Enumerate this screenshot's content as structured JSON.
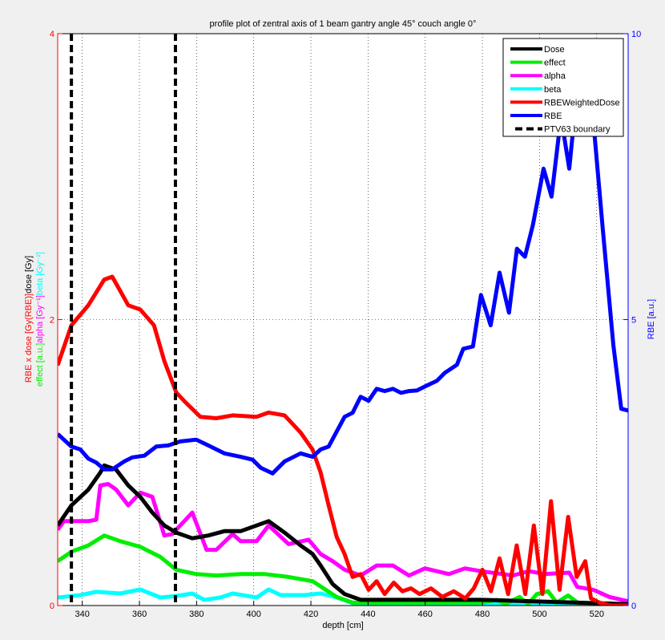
{
  "chart_data": {
    "type": "line",
    "title": "profile plot of zentral axis of 1 beam gantry angle 45° couch angle 0°",
    "xlabel": "depth [cm]",
    "ylabel_left_line1": [
      {
        "text": "RBE x dose [Gy(RBE)]",
        "color": "#ff0000"
      },
      {
        "text": "dose [Gy]",
        "color": "#000000"
      }
    ],
    "ylabel_left_line2": [
      {
        "text": "effect [a.u.]",
        "color": "#00ee00"
      },
      {
        "text": "alpha [Gy⁻¹]",
        "color": "#ff00ff"
      },
      {
        "text": "beta [Gy⁻²]",
        "color": "#00ffff"
      }
    ],
    "ylabel_right": "RBE [a.u.]",
    "xlim": [
      331.4,
      531
    ],
    "ylim_left": [
      0,
      4
    ],
    "ylim_right": [
      0,
      10
    ],
    "xticks": [
      340,
      360,
      380,
      400,
      420,
      440,
      460,
      480,
      500,
      520
    ],
    "yticks_left": [
      0,
      2,
      4
    ],
    "yticks_right": [
      0,
      5,
      10
    ],
    "grid": true,
    "legend_position": "top-right",
    "series": [
      {
        "name": "Dose",
        "color": "#000000",
        "axis": "left",
        "points": [
          [
            331.4,
            0.56
          ],
          [
            336.2,
            0.7
          ],
          [
            342.1,
            0.81
          ],
          [
            346.3,
            0.93
          ],
          [
            347.7,
            0.98
          ],
          [
            351.9,
            0.95
          ],
          [
            356.1,
            0.84
          ],
          [
            360.3,
            0.76
          ],
          [
            364.5,
            0.65
          ],
          [
            368.7,
            0.56
          ],
          [
            372.9,
            0.51
          ],
          [
            378.5,
            0.47
          ],
          [
            384.1,
            0.49
          ],
          [
            389.7,
            0.52
          ],
          [
            395.4,
            0.52
          ],
          [
            401,
            0.56
          ],
          [
            405.2,
            0.59
          ],
          [
            410.8,
            0.51
          ],
          [
            416.4,
            0.42
          ],
          [
            420.6,
            0.36
          ],
          [
            423.4,
            0.28
          ],
          [
            427.6,
            0.15
          ],
          [
            431.8,
            0.08
          ],
          [
            437.4,
            0.04
          ],
          [
            443,
            0.04
          ],
          [
            479.5,
            0.04
          ],
          [
            531,
            0.01
          ]
        ]
      },
      {
        "name": "effect",
        "color": "#00ee00",
        "axis": "left",
        "points": [
          [
            331.4,
            0.31
          ],
          [
            336.5,
            0.38
          ],
          [
            342.1,
            0.42
          ],
          [
            347.7,
            0.49
          ],
          [
            353.3,
            0.45
          ],
          [
            360.3,
            0.41
          ],
          [
            367.3,
            0.34
          ],
          [
            372.9,
            0.25
          ],
          [
            379.9,
            0.22
          ],
          [
            386.9,
            0.21
          ],
          [
            395.4,
            0.22
          ],
          [
            403.8,
            0.22
          ],
          [
            412.2,
            0.2
          ],
          [
            420.6,
            0.17
          ],
          [
            429,
            0.06
          ],
          [
            434.6,
            0.02
          ],
          [
            479.5,
            0.02
          ],
          [
            485,
            0.04
          ],
          [
            488,
            0.01
          ],
          [
            493,
            0.06
          ],
          [
            496,
            0.01
          ],
          [
            499,
            0.08
          ],
          [
            503,
            0.1
          ],
          [
            506,
            0.02
          ],
          [
            510,
            0.07
          ],
          [
            514,
            0.01
          ],
          [
            520,
            0.01
          ],
          [
            531,
            0
          ]
        ]
      },
      {
        "name": "alpha",
        "color": "#ff00ff",
        "axis": "left",
        "points": [
          [
            331.4,
            0.53
          ],
          [
            333.6,
            0.59
          ],
          [
            342.1,
            0.59
          ],
          [
            344.9,
            0.6
          ],
          [
            346.3,
            0.84
          ],
          [
            349.1,
            0.85
          ],
          [
            351.9,
            0.81
          ],
          [
            356.1,
            0.7
          ],
          [
            360.3,
            0.79
          ],
          [
            364.5,
            0.76
          ],
          [
            368.7,
            0.49
          ],
          [
            371.5,
            0.5
          ],
          [
            374.3,
            0.56
          ],
          [
            378.5,
            0.65
          ],
          [
            383.5,
            0.39
          ],
          [
            386.9,
            0.39
          ],
          [
            392.6,
            0.5
          ],
          [
            395.4,
            0.45
          ],
          [
            401,
            0.45
          ],
          [
            405.2,
            0.56
          ],
          [
            412.2,
            0.43
          ],
          [
            419.2,
            0.46
          ],
          [
            423.4,
            0.36
          ],
          [
            427.6,
            0.31
          ],
          [
            431.8,
            0.25
          ],
          [
            437.4,
            0.21
          ],
          [
            443,
            0.28
          ],
          [
            448.7,
            0.28
          ],
          [
            454.3,
            0.21
          ],
          [
            459.9,
            0.26
          ],
          [
            468.3,
            0.22
          ],
          [
            473.9,
            0.26
          ],
          [
            479.5,
            0.24
          ],
          [
            490.7,
            0.21
          ],
          [
            496.3,
            0.24
          ],
          [
            501.9,
            0.22
          ],
          [
            510.4,
            0.23
          ],
          [
            513.2,
            0.13
          ],
          [
            518.8,
            0.11
          ],
          [
            524.4,
            0.06
          ],
          [
            531,
            0.03
          ]
        ]
      },
      {
        "name": "beta",
        "color": "#00ffff",
        "axis": "left",
        "points": [
          [
            331.4,
            0.056
          ],
          [
            339.3,
            0.073
          ],
          [
            344.9,
            0.096
          ],
          [
            353.3,
            0.084
          ],
          [
            360.3,
            0.112
          ],
          [
            367.3,
            0.056
          ],
          [
            372.9,
            0.067
          ],
          [
            378.5,
            0.084
          ],
          [
            382.7,
            0.039
          ],
          [
            388.3,
            0.056
          ],
          [
            392.6,
            0.084
          ],
          [
            401,
            0.056
          ],
          [
            405.2,
            0.112
          ],
          [
            409.4,
            0.073
          ],
          [
            417.8,
            0.073
          ],
          [
            423.4,
            0.084
          ],
          [
            429,
            0.056
          ],
          [
            434.6,
            0.017
          ],
          [
            531,
            0.01
          ]
        ]
      },
      {
        "name": "RBEWeightedDose",
        "color": "#ff0000",
        "axis": "left",
        "points": [
          [
            331.4,
            1.68
          ],
          [
            336.2,
            1.96
          ],
          [
            342.1,
            2.1
          ],
          [
            347.7,
            2.28
          ],
          [
            350.5,
            2.3
          ],
          [
            356.1,
            2.1
          ],
          [
            360.3,
            2.07
          ],
          [
            365.1,
            1.96
          ],
          [
            368.7,
            1.71
          ],
          [
            372.9,
            1.49
          ],
          [
            375.7,
            1.43
          ],
          [
            381.3,
            1.32
          ],
          [
            386.9,
            1.31
          ],
          [
            392.6,
            1.33
          ],
          [
            401,
            1.32
          ],
          [
            405.2,
            1.35
          ],
          [
            410.8,
            1.33
          ],
          [
            416.4,
            1.21
          ],
          [
            420.6,
            1.09
          ],
          [
            423.4,
            0.93
          ],
          [
            426.2,
            0.7
          ],
          [
            429,
            0.48
          ],
          [
            431.8,
            0.36
          ],
          [
            434.6,
            0.2
          ],
          [
            437.4,
            0.22
          ],
          [
            440.2,
            0.11
          ],
          [
            443,
            0.17
          ],
          [
            445.8,
            0.08
          ],
          [
            449,
            0.16
          ],
          [
            452,
            0.1
          ],
          [
            455,
            0.12
          ],
          [
            458,
            0.08
          ],
          [
            462,
            0.12
          ],
          [
            466,
            0.06
          ],
          [
            470,
            0.1
          ],
          [
            474,
            0.05
          ],
          [
            477,
            0.12
          ],
          [
            480,
            0.25
          ],
          [
            483,
            0.1
          ],
          [
            486,
            0.33
          ],
          [
            489,
            0.08
          ],
          [
            492,
            0.42
          ],
          [
            495,
            0.08
          ],
          [
            498,
            0.56
          ],
          [
            501,
            0.08
          ],
          [
            504,
            0.73
          ],
          [
            507,
            0.11
          ],
          [
            510,
            0.62
          ],
          [
            513,
            0.2
          ],
          [
            516,
            0.31
          ],
          [
            518,
            0.05
          ],
          [
            521,
            0.02
          ],
          [
            525,
            0
          ],
          [
            531,
            0
          ]
        ]
      },
      {
        "name": "RBE",
        "color": "#0000ff",
        "axis": "right",
        "points": [
          [
            331.4,
            3.0
          ],
          [
            336.2,
            2.78
          ],
          [
            339.3,
            2.73
          ],
          [
            342.1,
            2.57
          ],
          [
            344.9,
            2.5
          ],
          [
            347.7,
            2.38
          ],
          [
            350.5,
            2.38
          ],
          [
            354.7,
            2.52
          ],
          [
            357.5,
            2.59
          ],
          [
            361.7,
            2.62
          ],
          [
            365.9,
            2.78
          ],
          [
            370.1,
            2.8
          ],
          [
            374.3,
            2.87
          ],
          [
            379.9,
            2.9
          ],
          [
            384.1,
            2.8
          ],
          [
            389.7,
            2.66
          ],
          [
            395.4,
            2.6
          ],
          [
            399.6,
            2.55
          ],
          [
            402.4,
            2.41
          ],
          [
            406.6,
            2.31
          ],
          [
            410.8,
            2.52
          ],
          [
            416.4,
            2.66
          ],
          [
            420.6,
            2.6
          ],
          [
            423.4,
            2.73
          ],
          [
            426.2,
            2.78
          ],
          [
            431.8,
            3.3
          ],
          [
            434.6,
            3.37
          ],
          [
            437.4,
            3.65
          ],
          [
            440.2,
            3.58
          ],
          [
            443,
            3.79
          ],
          [
            445.8,
            3.75
          ],
          [
            448.7,
            3.79
          ],
          [
            451.5,
            3.72
          ],
          [
            454.3,
            3.75
          ],
          [
            457.1,
            3.76
          ],
          [
            459.9,
            3.83
          ],
          [
            464.1,
            3.93
          ],
          [
            466.9,
            4.07
          ],
          [
            471.1,
            4.21
          ],
          [
            473.3,
            4.49
          ],
          [
            476.7,
            4.53
          ],
          [
            479.5,
            5.43
          ],
          [
            482.9,
            4.9
          ],
          [
            486,
            5.82
          ],
          [
            489.3,
            5.12
          ],
          [
            492.1,
            6.24
          ],
          [
            494.9,
            6.1
          ],
          [
            497.7,
            6.66
          ],
          [
            501.4,
            7.64
          ],
          [
            504.2,
            7.15
          ],
          [
            507.5,
            8.55
          ],
          [
            510.4,
            7.64
          ],
          [
            513.2,
            9.05
          ],
          [
            516,
            9.25
          ],
          [
            518.8,
            8.48
          ],
          [
            522.1,
            6.59
          ],
          [
            525.8,
            4.56
          ],
          [
            528.6,
            3.44
          ],
          [
            531,
            3.41
          ]
        ]
      }
    ],
    "boundary_lines": {
      "name": "PTV63 boundary",
      "color": "#000000",
      "x": [
        336.2,
        372.6
      ]
    }
  }
}
